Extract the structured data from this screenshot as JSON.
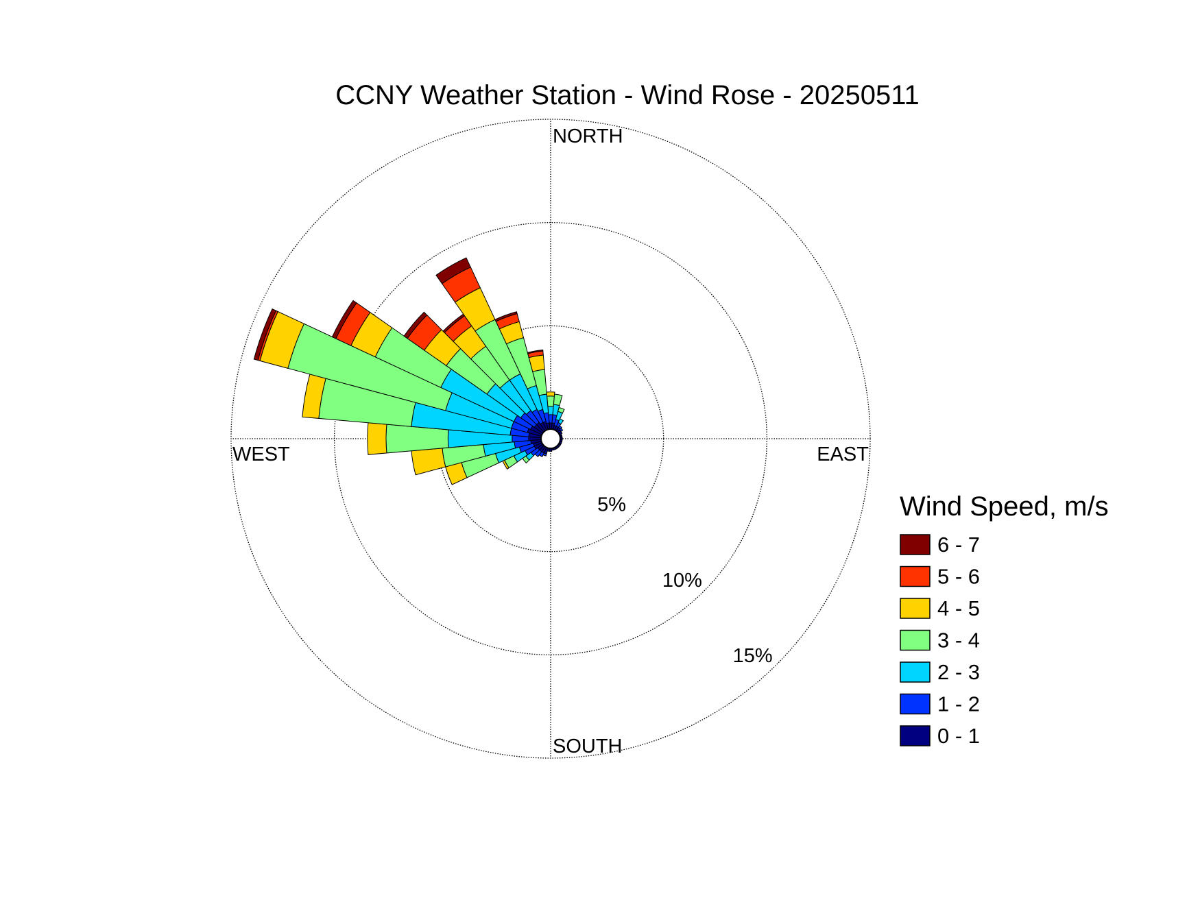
{
  "chart_data": {
    "type": "windrose",
    "title": "CCNY Weather Station - Wind Rose - 20250511",
    "legend_title": "Wind Speed, m/s",
    "x": [
      0,
      10,
      20,
      30,
      40,
      50,
      60,
      70,
      80,
      90,
      100,
      110,
      120,
      130,
      140,
      150,
      160,
      170,
      180,
      190,
      200,
      210,
      220,
      230,
      240,
      250,
      260,
      270,
      280,
      290,
      300,
      310,
      320,
      330,
      340,
      350
    ],
    "xticks": [
      {
        "value": 0,
        "label": "NORTH"
      },
      {
        "value": 90,
        "label": "EAST"
      },
      {
        "value": 180,
        "label": "SOUTH"
      },
      {
        "value": 270,
        "label": "WEST"
      }
    ],
    "ylim": [
      0,
      15
    ],
    "yticks": [
      {
        "value": 5,
        "label": "5%"
      },
      {
        "value": 10,
        "label": "10%"
      },
      {
        "value": 15,
        "label": "15%"
      }
    ],
    "grid": true,
    "series": [
      {
        "name": "0 - 1",
        "color": "#000080",
        "values": [
          0.3,
          0.3,
          0.2,
          0.2,
          0.2,
          0.15,
          0.15,
          0.1,
          0.1,
          0.1,
          0.1,
          0.1,
          0.1,
          0.1,
          0.1,
          0.1,
          0.1,
          0.1,
          0.15,
          0.15,
          0.3,
          0.3,
          0.3,
          0.3,
          0.4,
          0.4,
          0.5,
          0.6,
          0.6,
          0.7,
          0.6,
          0.5,
          0.5,
          0.4,
          0.4,
          0.3
        ]
      },
      {
        "name": "1 - 2",
        "color": "#0033ff",
        "values": [
          0.4,
          0.4,
          0.3,
          0.2,
          0.1,
          0.1,
          0,
          0,
          0,
          0,
          0,
          0,
          0,
          0,
          0,
          0,
          0,
          0,
          0,
          0,
          0.1,
          0.2,
          0.3,
          0.4,
          0.5,
          0.7,
          0.8,
          0.8,
          0.9,
          0.8,
          0.9,
          0.8,
          0.7,
          0.7,
          0.6,
          0.5
        ]
      },
      {
        "name": "2 - 3",
        "color": "#00d5ff",
        "values": [
          0.4,
          0.5,
          0.4,
          0.2,
          0,
          0,
          0,
          0,
          0,
          0,
          0,
          0,
          0,
          0,
          0,
          0,
          0,
          0,
          0,
          0,
          0,
          0,
          0,
          0.3,
          0.6,
          1.2,
          1.5,
          3.1,
          4.8,
          3.3,
          3.9,
          2.0,
          1.8,
          1.9,
          1.2,
          0.9
        ]
      },
      {
        "name": "3 - 4",
        "color": "#80ff80",
        "values": [
          0.5,
          0.5,
          0.2,
          0,
          0,
          0,
          0,
          0,
          0,
          0,
          0,
          0,
          0,
          0,
          0,
          0,
          0,
          0,
          0,
          0,
          0,
          0,
          0,
          0.2,
          0.5,
          1.7,
          2.0,
          3.0,
          4.5,
          7.9,
          3.5,
          2.4,
          2.0,
          2.9,
          2.4,
          1.2
        ]
      },
      {
        "name": "4 - 5",
        "color": "#ffd200",
        "values": [
          0.2,
          0,
          0,
          0,
          0,
          0,
          0,
          0,
          0,
          0,
          0,
          0,
          0,
          0,
          0,
          0,
          0,
          0,
          0,
          0,
          0,
          0,
          0,
          0,
          0.1,
          0.8,
          1.5,
          0.9,
          0.8,
          1.4,
          1.3,
          1.3,
          1.2,
          1.7,
          0.8,
          0.7
        ]
      },
      {
        "name": "5 - 6",
        "color": "#ff3300",
        "values": [
          0,
          0,
          0,
          0,
          0,
          0,
          0,
          0,
          0,
          0,
          0,
          0,
          0,
          0,
          0,
          0,
          0,
          0,
          0,
          0,
          0,
          0,
          0,
          0,
          0,
          0,
          0,
          0,
          0,
          0.1,
          0.8,
          1.0,
          0.6,
          1.1,
          0.4,
          0.2
        ]
      },
      {
        "name": "6 - 7",
        "color": "#800000",
        "values": [
          0,
          0,
          0,
          0,
          0,
          0,
          0,
          0,
          0,
          0,
          0,
          0,
          0,
          0,
          0,
          0,
          0,
          0,
          0,
          0,
          0,
          0,
          0,
          0,
          0,
          0,
          0,
          0,
          0,
          0.2,
          0.2,
          0.2,
          0.1,
          0.5,
          0.1,
          0.05
        ]
      }
    ]
  }
}
